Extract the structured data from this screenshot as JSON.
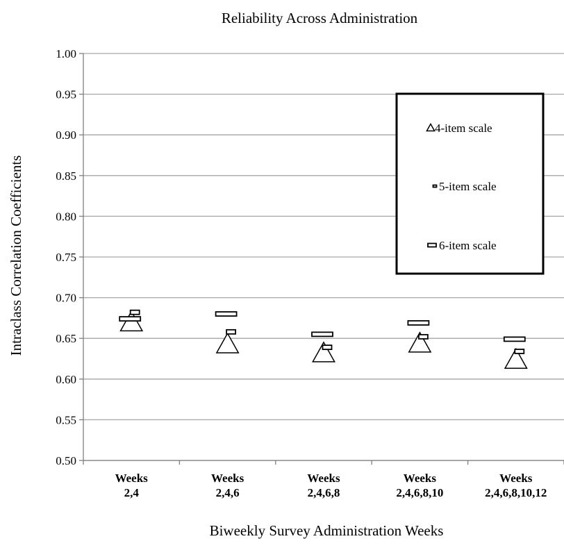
{
  "chart_data": {
    "type": "scatter",
    "title": "Reliability Across Administration",
    "xlabel": "Biweekly Survey Administration Weeks",
    "ylabel": "Intraclass Correlation Coefficients",
    "categories": [
      [
        "Weeks",
        "2,4"
      ],
      [
        "Weeks",
        "2,4,6"
      ],
      [
        "Weeks",
        "2,4,6,8"
      ],
      [
        "Weeks",
        "2,4,6,8,10"
      ],
      [
        "Weeks",
        "2,4,6,8,10,12"
      ]
    ],
    "ylim": [
      0.5,
      1.0
    ],
    "yticks": [
      "0.50",
      "0.55",
      "0.60",
      "0.65",
      "0.70",
      "0.75",
      "0.80",
      "0.85",
      "0.90",
      "0.95",
      "1.00"
    ],
    "grid": true,
    "legend_position": "top-right",
    "series": [
      {
        "name": "4-item scale",
        "marker": "triangle",
        "values": [
          0.67,
          0.643,
          0.632,
          0.644,
          0.624
        ]
      },
      {
        "name": "5-item scale",
        "marker": "small-bar",
        "values": [
          0.682,
          0.658,
          0.639,
          0.652,
          0.634
        ]
      },
      {
        "name": "6-item scale",
        "marker": "bar",
        "values": [
          0.674,
          0.68,
          0.655,
          0.669,
          0.649
        ]
      }
    ]
  }
}
